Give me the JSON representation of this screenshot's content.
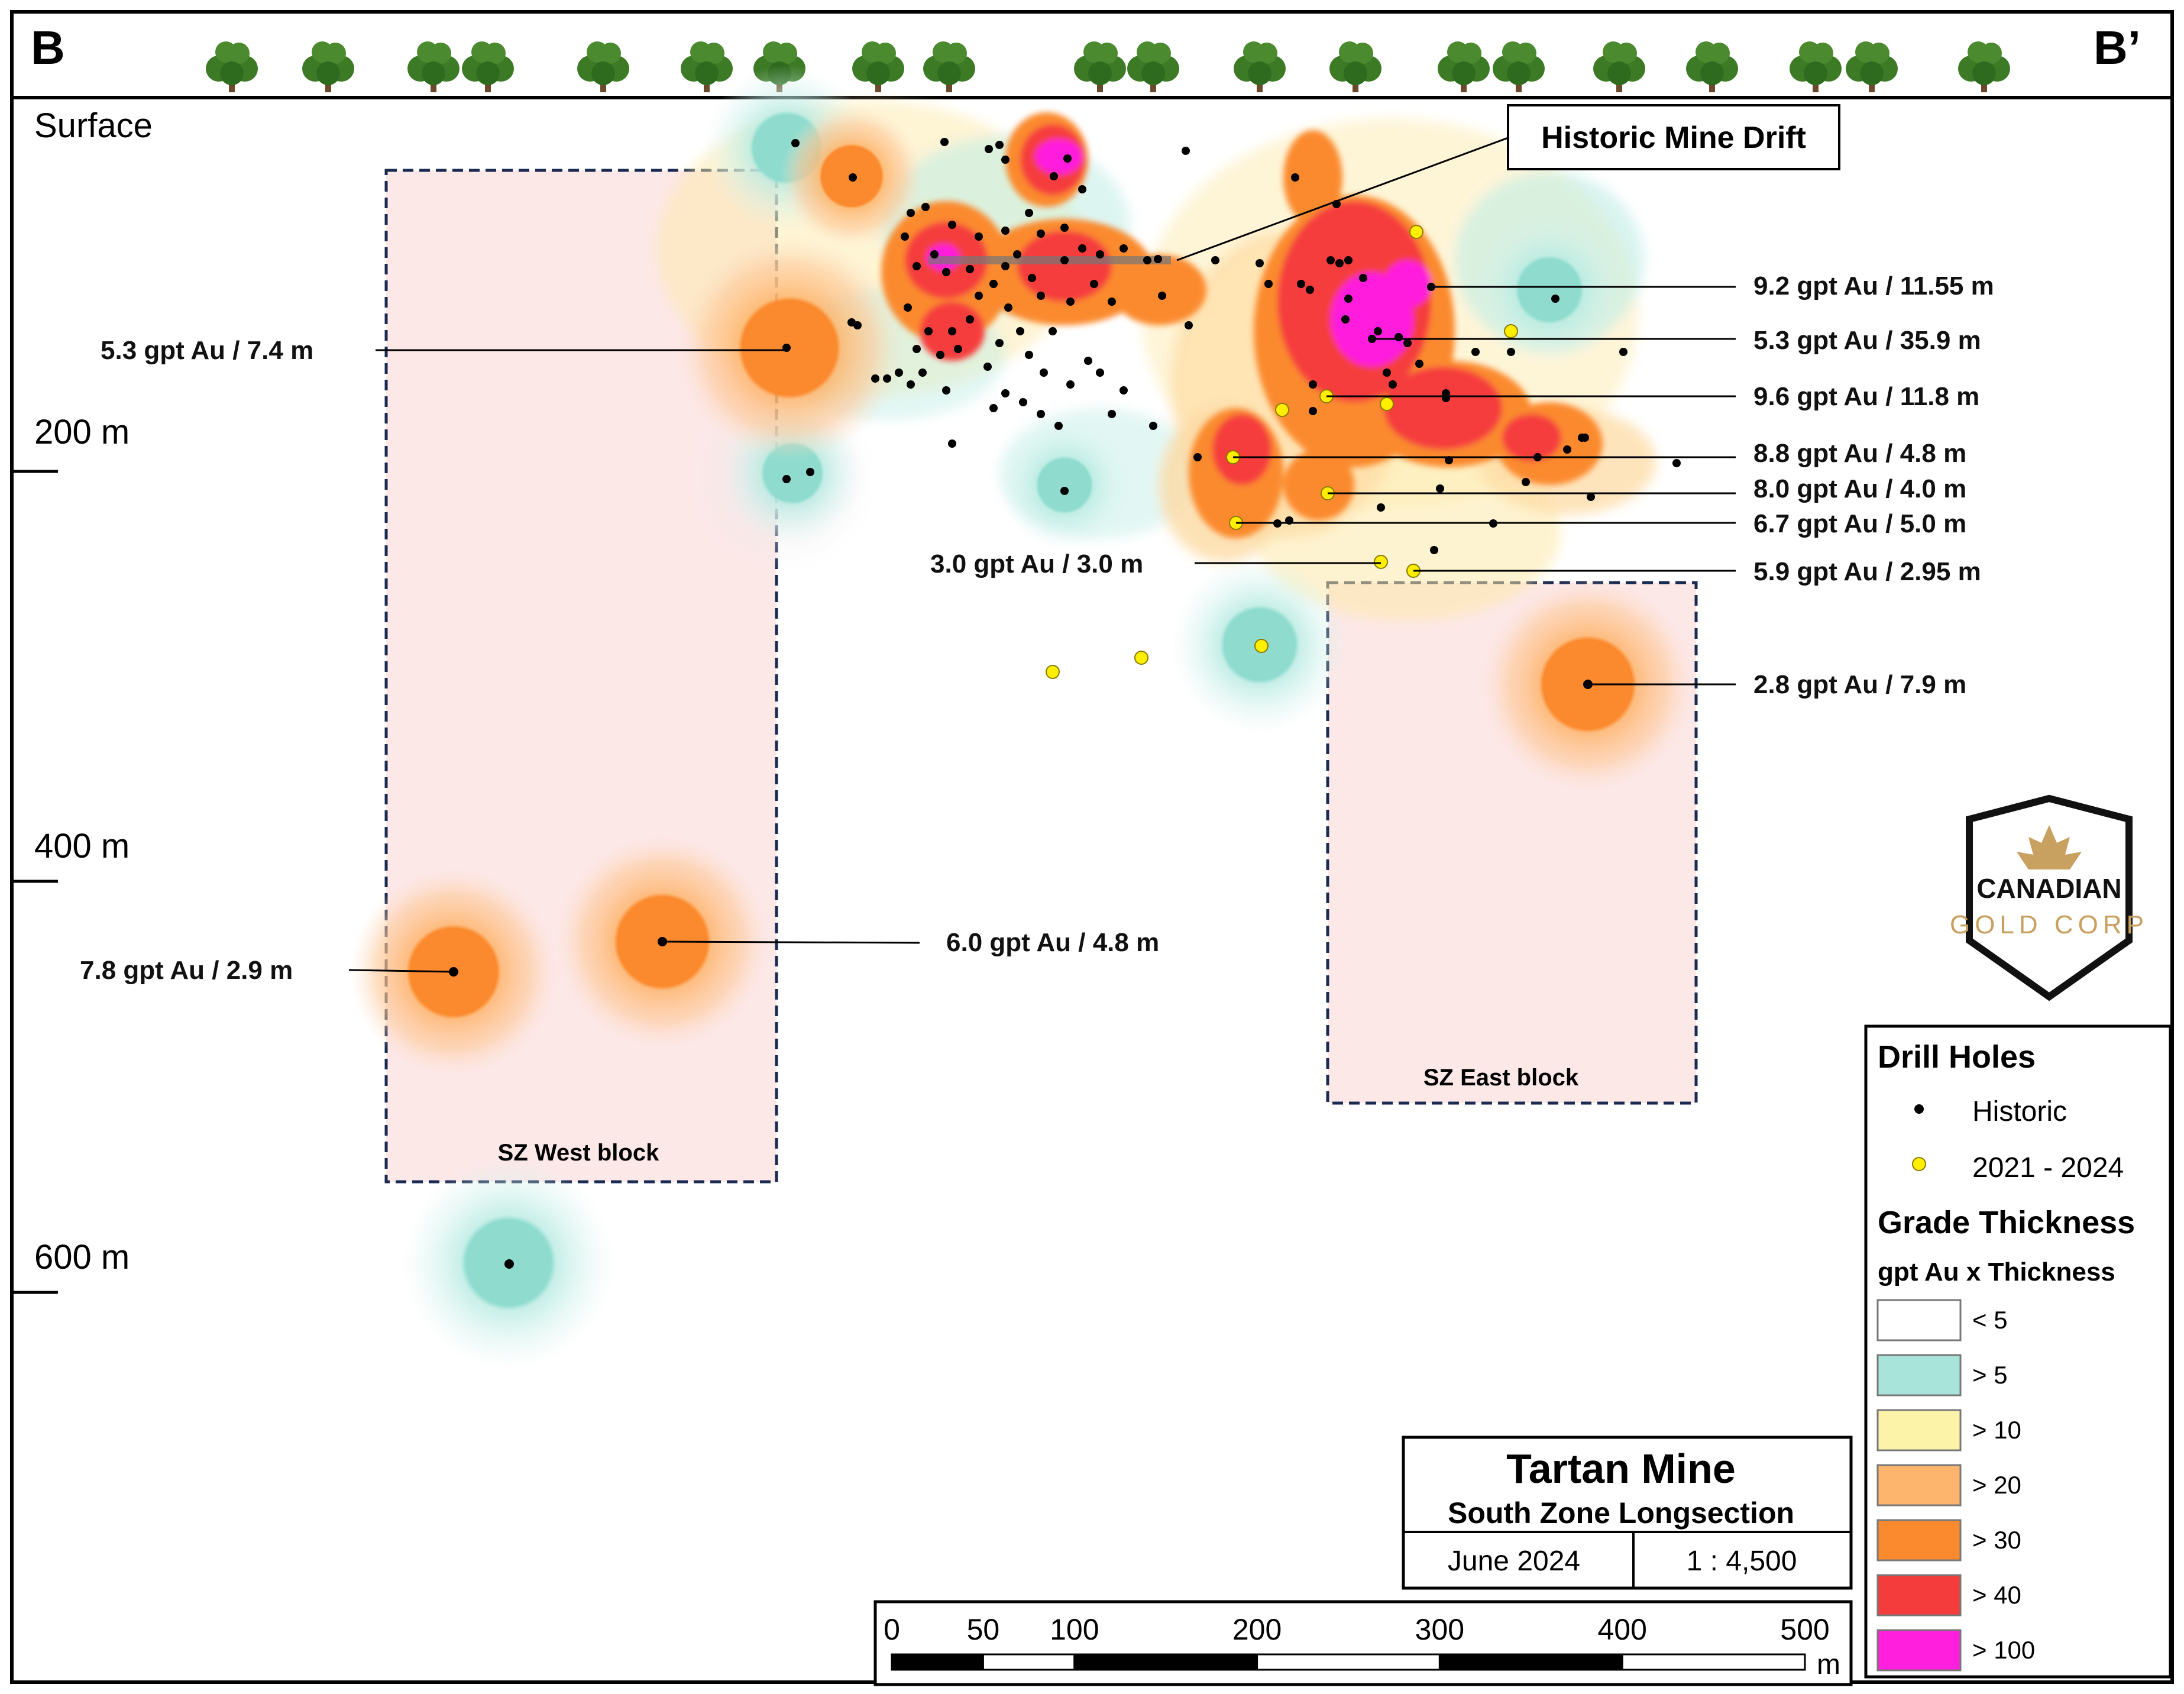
{
  "header": {
    "left_label": "B",
    "right_label": "B’"
  },
  "surface_label": "Surface",
  "depth_labels": [
    "200 m",
    "400 m",
    "600 m"
  ],
  "callouts": {
    "historic_drift": "Historic Mine Drift"
  },
  "intercepts": [
    "9.2 gpt Au / 11.55 m",
    "5.3 gpt Au / 35.9 m",
    "9.6 gpt Au / 11.8 m",
    "8.8 gpt Au / 4.8 m",
    "8.0 gpt Au / 4.0 m",
    "6.7 gpt Au / 5.0 m",
    "5.9 gpt Au / 2.95 m",
    "2.8 gpt Au / 7.9 m",
    "3.0 gpt Au / 3.0 m",
    "5.3 gpt Au / 7.4 m",
    "6.0 gpt Au / 4.8 m",
    "7.8 gpt Au / 2.9 m"
  ],
  "blocks": {
    "west": "SZ West block",
    "east": "SZ East block"
  },
  "logo": {
    "line1": "CANADIAN",
    "line2": "GOLD CORP",
    "gold_color": "#c8a060"
  },
  "legend": {
    "drill_title": "Drill Holes",
    "historic": "Historic",
    "recent": "2021 - 2024",
    "grade_title": "Grade Thickness",
    "grade_subtitle": "gpt Au x Thickness",
    "classes": [
      {
        "label": "< 5",
        "color": "#ffffff"
      },
      {
        "label": "> 5",
        "color": "#a8e4da"
      },
      {
        "label": "> 10",
        "color": "#fdf3a8"
      },
      {
        "label": "> 20",
        "color": "#fdb56e"
      },
      {
        "label": "> 30",
        "color": "#fb8a2e"
      },
      {
        "label": "> 40",
        "color": "#f53c3c"
      },
      {
        "label": "> 100",
        "color": "#ff1fdc"
      }
    ]
  },
  "title_box": {
    "title": "Tartan Mine",
    "subtitle": "South Zone Longsection",
    "date": "June 2024",
    "scale": "1 : 4,500"
  },
  "scale_bar": {
    "ticks": [
      "0",
      "50",
      "100",
      "200",
      "300",
      "400",
      "500"
    ],
    "unit": "m"
  }
}
